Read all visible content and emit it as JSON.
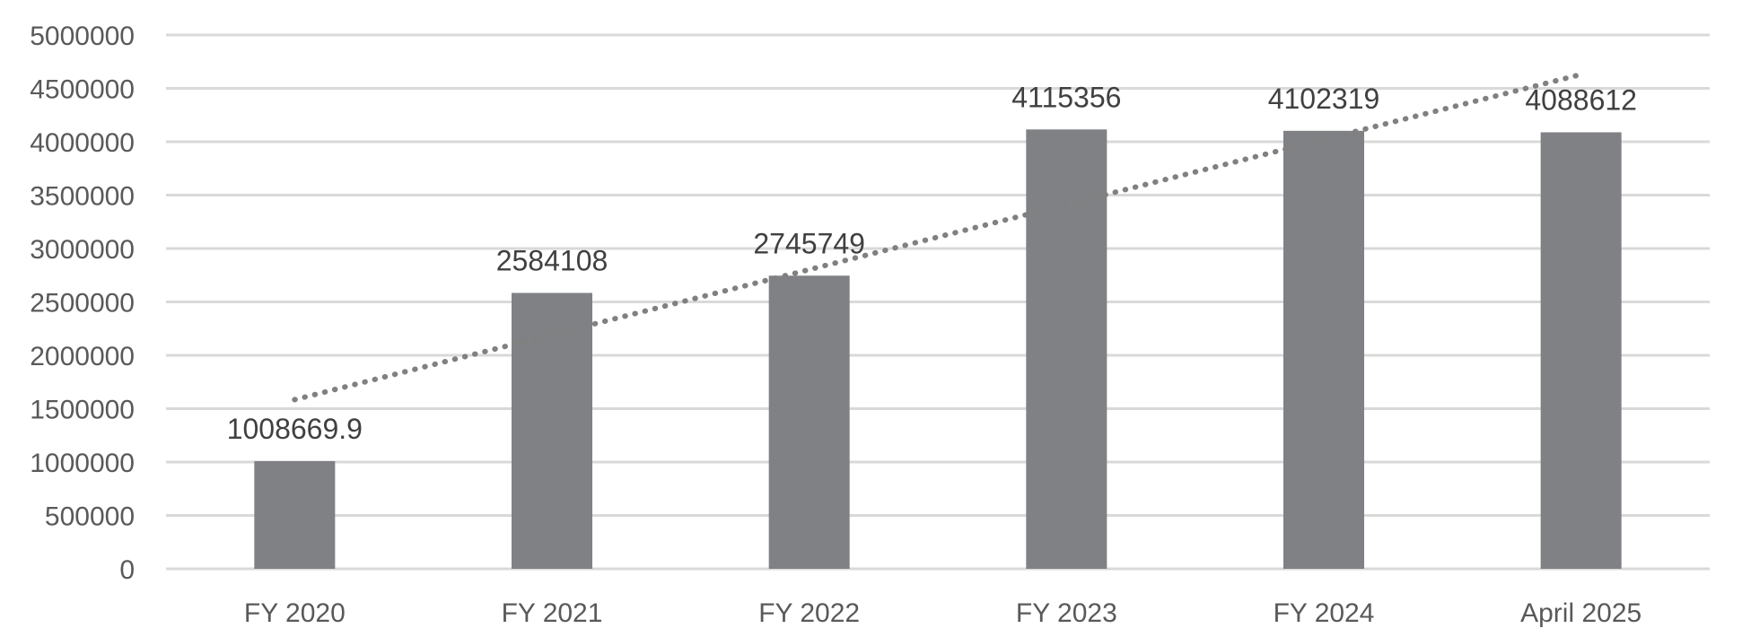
{
  "chart_data": {
    "type": "bar",
    "categories": [
      "FY 2020",
      "FY 2021",
      "FY 2022",
      "FY 2023",
      "FY 2024",
      "April 2025"
    ],
    "values": [
      1008669.9,
      2584108,
      2745749,
      4115356,
      4102319,
      4088612
    ],
    "data_labels": [
      "1008669.9",
      "2584108",
      "2745749",
      "4115356",
      "4102319",
      "4088612"
    ],
    "y_ticks": [
      0,
      500000,
      1000000,
      1500000,
      2000000,
      2500000,
      3000000,
      3500000,
      4000000,
      4500000,
      5000000
    ],
    "ylim": [
      0,
      5000000
    ],
    "grid": true,
    "legend": "none",
    "trendline": {
      "type": "linear",
      "style": "dotted"
    },
    "colors": {
      "bar": "#808184",
      "trendline": "#808080",
      "grid": "#d9d9d9",
      "tick_text": "#595959",
      "label_text": "#404040"
    }
  }
}
